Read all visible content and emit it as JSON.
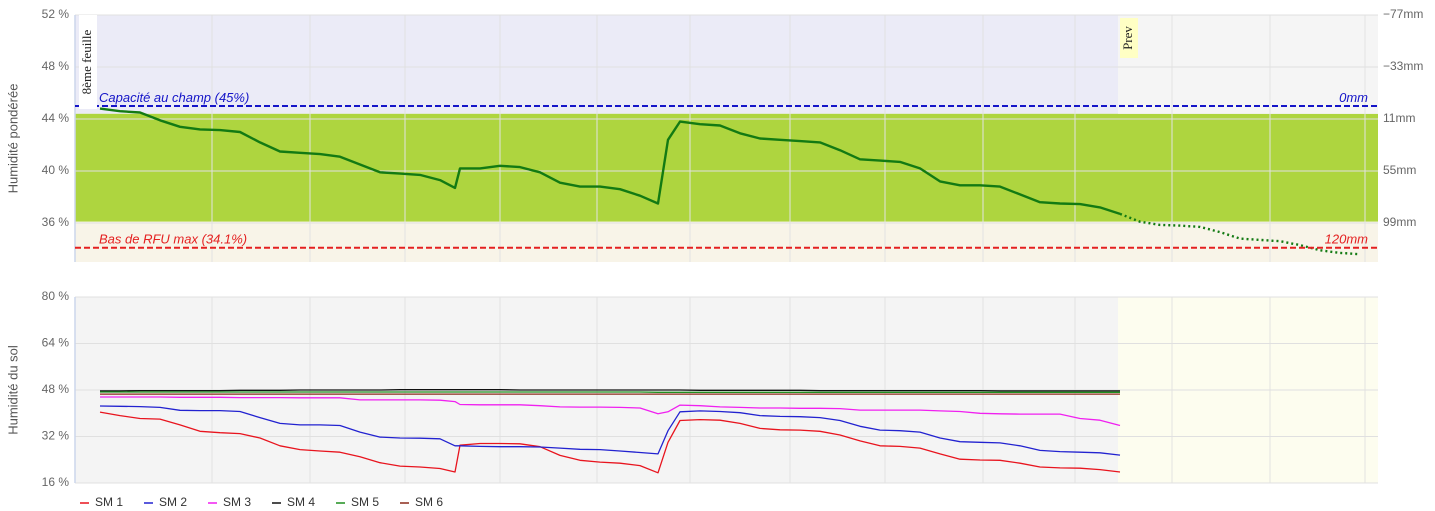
{
  "chart_data": [
    {
      "type": "line",
      "y_label": "Humidité pondérée",
      "xlim": [
        -1.25,
        63.9
      ],
      "ylim": [
        33,
        52
      ],
      "yticks": [
        {
          "value": 52,
          "label": "52 %"
        },
        {
          "value": 48,
          "label": "48 %"
        },
        {
          "value": 44,
          "label": "44 %"
        },
        {
          "value": 40,
          "label": "40 %"
        },
        {
          "value": 36,
          "label": "36 %"
        }
      ],
      "y2lim": [
        132,
        -77
      ],
      "y2ticks": [
        {
          "value": -77,
          "label": "−77mm"
        },
        {
          "value": -33,
          "label": "−33mm"
        },
        {
          "value": 11,
          "label": "11mm"
        },
        {
          "value": 55,
          "label": "55mm"
        },
        {
          "value": 99,
          "label": "99mm"
        }
      ],
      "grid": true,
      "xgrid": [
        5.6,
        10.5,
        15.25,
        20,
        24.85,
        29.5,
        34.5,
        39.25,
        44.15,
        48.75,
        53.6,
        58.5,
        63.25
      ],
      "bands": [
        {
          "from": 44.4,
          "to": 52,
          "color": "#ebebf7"
        },
        {
          "from": 36.1,
          "to": 44.4,
          "color": "#aed53f"
        },
        {
          "from": 33,
          "to": 36.1,
          "color": "#f8f4e8"
        }
      ],
      "thresholds": [
        {
          "value": 45,
          "color": "#1414c8",
          "label": "Capacité au champ (45%)",
          "right_label": "0mm"
        },
        {
          "value": 34.1,
          "color": "#e42020",
          "label": "Bas de RFU max (34.1%)",
          "right_label": "120mm"
        }
      ],
      "annotations": [
        {
          "x": -0.6,
          "label": "8ème feuille"
        },
        {
          "x": 50.9,
          "label": "Prev",
          "shade": true
        }
      ],
      "series": [
        {
          "color": "#137a13",
          "dash": "solid",
          "x": [
            0,
            1,
            2,
            3,
            4,
            5,
            6,
            7,
            8,
            9,
            10,
            11,
            12,
            13,
            14,
            15,
            16,
            17,
            17.75,
            18,
            19,
            20,
            21,
            22,
            23,
            24,
            25,
            26,
            27,
            27.9,
            28.4,
            29,
            30,
            31,
            32,
            33,
            34,
            35,
            36,
            37,
            38,
            39,
            40,
            41,
            42,
            43,
            44,
            45,
            46,
            47,
            48,
            49,
            50,
            51
          ],
          "values": [
            44.8,
            44.6,
            44.5,
            43.9,
            43.4,
            43.2,
            43.15,
            43.0,
            42.2,
            41.5,
            41.4,
            41.3,
            41.1,
            40.5,
            39.9,
            39.8,
            39.7,
            39.3,
            38.7,
            40.2,
            40.2,
            40.4,
            40.3,
            39.9,
            39.1,
            38.8,
            38.8,
            38.6,
            38.1,
            37.5,
            42.4,
            43.8,
            43.6,
            43.5,
            42.9,
            42.5,
            42.4,
            42.3,
            42.2,
            41.6,
            40.9,
            40.8,
            40.7,
            40.2,
            39.2,
            38.9,
            38.9,
            38.8,
            38.2,
            37.6,
            37.5,
            37.45,
            37.2,
            36.7
          ]
        },
        {
          "color": "#137a13",
          "dash": "dotted",
          "x": [
            51,
            52,
            53,
            54,
            55,
            56,
            57,
            58,
            59,
            60,
            61,
            62,
            63
          ],
          "values": [
            36.7,
            36.1,
            35.85,
            35.8,
            35.7,
            35.3,
            34.8,
            34.7,
            34.6,
            34.3,
            33.9,
            33.7,
            33.6
          ]
        }
      ]
    },
    {
      "type": "line",
      "y_label": "Humidité du sol",
      "xlim": [
        -1.25,
        63.9
      ],
      "ylim": [
        16,
        80
      ],
      "yticks": [
        {
          "value": 80,
          "label": "80 %"
        },
        {
          "value": 64,
          "label": "64 %"
        },
        {
          "value": 48,
          "label": "48 %"
        },
        {
          "value": 32,
          "label": "32 %"
        },
        {
          "value": 16,
          "label": "16 %"
        }
      ],
      "grid": true,
      "xgrid": [
        5.6,
        10.5,
        15.25,
        20,
        24.85,
        29.5,
        34.5,
        39.25,
        44.15,
        48.75,
        53.6,
        58.5,
        63.25
      ],
      "forecast_start": 50.9,
      "legend": "bottom-left",
      "x": [
        0,
        1,
        2,
        3,
        4,
        5,
        6,
        7,
        8,
        9,
        10,
        11,
        12,
        13,
        14,
        15,
        16,
        17,
        17.75,
        18,
        19,
        20,
        21,
        22,
        23,
        24,
        25,
        26,
        27,
        27.9,
        28.4,
        29,
        30,
        31,
        32,
        33,
        34,
        35,
        36,
        37,
        38,
        39,
        40,
        41,
        42,
        43,
        44,
        45,
        46,
        47,
        48,
        49,
        50,
        51
      ],
      "series": [
        {
          "name": "SM 1",
          "color": "#e8141e",
          "values": [
            40.4,
            39.2,
            38.2,
            38.0,
            36.0,
            33.8,
            33.3,
            33.0,
            31.5,
            28.8,
            27.5,
            27.0,
            26.6,
            25.0,
            23.0,
            21.8,
            21.5,
            21.0,
            19.8,
            29.0,
            29.6,
            29.6,
            29.5,
            28.5,
            25.5,
            23.8,
            23.2,
            22.8,
            22.0,
            19.5,
            30.0,
            37.5,
            37.8,
            37.6,
            36.5,
            34.8,
            34.3,
            34.2,
            33.8,
            32.5,
            30.5,
            28.8,
            28.6,
            28.0,
            26.0,
            24.2,
            23.9,
            23.8,
            22.8,
            21.5,
            21.2,
            21.1,
            20.6,
            19.8
          ]
        },
        {
          "name": "SM 2",
          "color": "#2222d0",
          "values": [
            42.5,
            42.4,
            42.3,
            42.0,
            41.0,
            40.9,
            40.9,
            40.6,
            38.5,
            36.5,
            36.0,
            36.0,
            35.8,
            33.5,
            31.8,
            31.5,
            31.4,
            31.2,
            28.8,
            28.8,
            28.6,
            28.5,
            28.5,
            28.4,
            28.0,
            27.6,
            27.5,
            27.0,
            26.5,
            26.0,
            34.0,
            40.5,
            40.8,
            40.6,
            40.2,
            39.2,
            38.9,
            38.8,
            38.5,
            37.5,
            35.5,
            34.2,
            34.0,
            33.5,
            31.5,
            30.2,
            30.0,
            29.8,
            28.8,
            27.2,
            26.8,
            26.6,
            26.4,
            25.6
          ]
        },
        {
          "name": "SM 3",
          "color": "#f020f0",
          "values": [
            45.6,
            45.6,
            45.6,
            45.6,
            45.5,
            45.5,
            45.5,
            45.4,
            45.4,
            45.4,
            45.3,
            45.3,
            45.3,
            44.6,
            44.6,
            44.6,
            44.6,
            44.5,
            44.0,
            43.0,
            42.9,
            42.9,
            42.9,
            42.6,
            42.2,
            42.1,
            42.1,
            42.0,
            41.8,
            39.8,
            40.5,
            42.8,
            42.6,
            42.2,
            42.0,
            41.8,
            41.8,
            41.7,
            41.7,
            41.6,
            41.1,
            41.1,
            41.1,
            41.1,
            40.8,
            40.6,
            40.0,
            39.8,
            39.7,
            39.7,
            39.7,
            38.2,
            37.6,
            35.8
          ]
        },
        {
          "name": "SM 4",
          "color": "#111111",
          "values": [
            47.7,
            47.7,
            47.8,
            47.8,
            47.8,
            47.8,
            47.8,
            47.9,
            47.9,
            47.9,
            48.0,
            48.0,
            48.0,
            48.0,
            48.0,
            48.1,
            48.1,
            48.1,
            48.1,
            48.1,
            48.1,
            48.1,
            48.0,
            48.0,
            48.0,
            48.0,
            48.0,
            48.0,
            48.0,
            48.0,
            48.0,
            48.0,
            47.9,
            47.9,
            47.9,
            47.9,
            47.9,
            47.9,
            47.8,
            47.8,
            47.8,
            47.8,
            47.8,
            47.8,
            47.8,
            47.8,
            47.8,
            47.7,
            47.7,
            47.7,
            47.7,
            47.7,
            47.7,
            47.7
          ]
        },
        {
          "name": "SM 5",
          "color": "#1f8f1f",
          "values": [
            47.3,
            47.3,
            47.3,
            47.3,
            47.3,
            47.3,
            47.3,
            47.3,
            47.3,
            47.3,
            47.3,
            47.3,
            47.3,
            47.3,
            47.3,
            47.3,
            47.3,
            47.3,
            47.3,
            47.3,
            47.3,
            47.3,
            47.3,
            47.3,
            47.3,
            47.3,
            47.3,
            47.3,
            47.3,
            47.2,
            47.2,
            47.2,
            47.2,
            47.2,
            47.2,
            47.2,
            47.2,
            47.2,
            47.2,
            47.2,
            47.2,
            47.2,
            47.2,
            47.2,
            47.2,
            47.2,
            47.2,
            47.2,
            47.2,
            47.2,
            47.2,
            47.2,
            47.2,
            47.2
          ]
        },
        {
          "name": "SM 6",
          "color": "#8b2a1a",
          "values": [
            46.6,
            46.6,
            46.6,
            46.6,
            46.6,
            46.6,
            46.6,
            46.6,
            46.6,
            46.6,
            46.6,
            46.6,
            46.6,
            46.6,
            46.6,
            46.6,
            46.6,
            46.6,
            46.6,
            46.6,
            46.6,
            46.6,
            46.6,
            46.6,
            46.6,
            46.6,
            46.6,
            46.6,
            46.6,
            46.6,
            46.6,
            46.6,
            46.6,
            46.6,
            46.6,
            46.6,
            46.6,
            46.6,
            46.6,
            46.6,
            46.6,
            46.6,
            46.6,
            46.6,
            46.6,
            46.6,
            46.6,
            46.6,
            46.6,
            46.6,
            46.6,
            46.6,
            46.6,
            46.6
          ]
        }
      ]
    }
  ]
}
